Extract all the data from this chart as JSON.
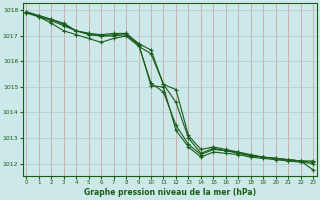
{
  "xlabel": "Graphe pression niveau de la mer (hPa)",
  "x": [
    0,
    1,
    2,
    3,
    4,
    5,
    6,
    7,
    8,
    9,
    10,
    11,
    12,
    13,
    14,
    15,
    16,
    17,
    18,
    19,
    20,
    21,
    22,
    23
  ],
  "line1": [
    1017.9,
    1017.75,
    1017.5,
    1017.2,
    1017.05,
    1016.9,
    1016.75,
    1016.9,
    1017.0,
    1016.6,
    1016.3,
    1015.1,
    1014.4,
    1013.0,
    1012.4,
    1012.6,
    1012.5,
    1012.4,
    1012.3,
    1012.25,
    1012.2,
    1012.15,
    1012.1,
    1011.75
  ],
  "line2": [
    1017.9,
    1017.8,
    1017.65,
    1017.5,
    1017.2,
    1017.1,
    1017.05,
    1017.1,
    1017.1,
    1016.7,
    1016.45,
    1015.1,
    1014.9,
    1013.1,
    1012.55,
    1012.65,
    1012.55,
    1012.45,
    1012.35,
    1012.25,
    1012.2,
    1012.15,
    1012.1,
    1012.1
  ],
  "line3": [
    1017.95,
    1017.8,
    1017.65,
    1017.45,
    1017.2,
    1017.05,
    1017.0,
    1017.0,
    1017.05,
    1016.65,
    1015.15,
    1014.8,
    1013.5,
    1012.75,
    1012.35,
    1012.55,
    1012.5,
    1012.45,
    1012.3,
    1012.25,
    1012.2,
    1012.15,
    1012.1,
    1012.05
  ],
  "line4": [
    1017.95,
    1017.75,
    1017.6,
    1017.4,
    1017.2,
    1017.1,
    1017.0,
    1017.05,
    1017.1,
    1016.7,
    1015.05,
    1015.0,
    1013.3,
    1012.65,
    1012.25,
    1012.45,
    1012.4,
    1012.35,
    1012.25,
    1012.2,
    1012.15,
    1012.1,
    1012.05,
    1012.0
  ],
  "bg_color": "#cce8e8",
  "line_color": "#1a5c1a",
  "vgrid_color": "#cc9999",
  "hgrid_color": "#aacccc",
  "ylim": [
    1011.5,
    1018.3
  ],
  "yticks": [
    1012,
    1013,
    1014,
    1015,
    1016,
    1017,
    1018
  ],
  "xticks": [
    0,
    1,
    2,
    3,
    4,
    5,
    6,
    7,
    8,
    9,
    10,
    11,
    12,
    13,
    14,
    15,
    16,
    17,
    18,
    19,
    20,
    21,
    22,
    23
  ]
}
